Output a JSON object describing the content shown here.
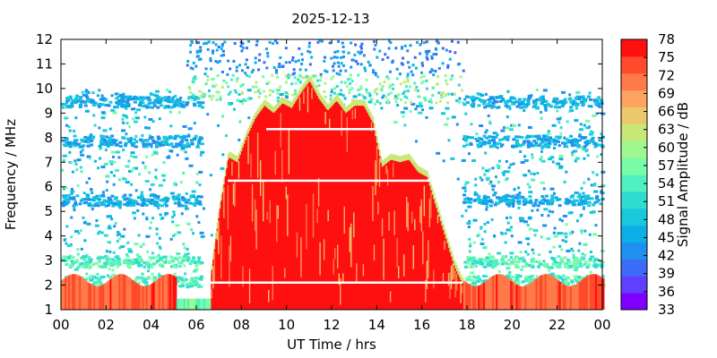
{
  "chart_data": {
    "type": "heatmap",
    "title": "2025-12-13",
    "xlabel": "UT Time / hrs",
    "ylabel": "Frequency / MHz",
    "colorbar_label": "Signal Amplitude / dB",
    "xlim": [
      0,
      24
    ],
    "ylim": [
      1,
      12
    ],
    "x_ticks": [
      "00",
      "02",
      "04",
      "06",
      "08",
      "10",
      "12",
      "14",
      "16",
      "18",
      "20",
      "22",
      "00"
    ],
    "y_ticks": [
      1,
      2,
      3,
      4,
      5,
      6,
      7,
      8,
      9,
      10,
      11,
      12
    ],
    "colorbar_range": [
      33,
      78
    ],
    "colorbar_ticks": [
      33,
      36,
      39,
      42,
      45,
      48,
      51,
      54,
      57,
      60,
      63,
      66,
      69,
      72,
      75,
      78
    ],
    "colorbar_colors": [
      "#8000ff",
      "#6040ff",
      "#3c6cf5",
      "#2090ee",
      "#0cb0e6",
      "#18c8dc",
      "#30dcd0",
      "#50f0c0",
      "#78fca8",
      "#a0f890",
      "#c8e878",
      "#ecc86c",
      "#fca460",
      "#ff7a48",
      "#ff4a2c",
      "#ff1010"
    ],
    "muf_profile_hours": [
      6.6,
      7.0,
      7.4,
      7.8,
      8.2,
      8.6,
      9.0,
      9.4,
      9.8,
      10.2,
      10.6,
      11.0,
      11.4,
      11.8,
      12.2,
      12.6,
      13.0,
      13.4,
      13.8,
      14.2,
      14.6,
      15.0,
      15.4,
      15.8,
      16.2,
      16.6,
      17.0,
      17.4,
      17.8
    ],
    "muf_profile_mhz": [
      2.2,
      5.0,
      7.2,
      7.0,
      8.0,
      8.8,
      9.3,
      9.0,
      9.4,
      9.2,
      9.8,
      10.3,
      9.6,
      9.1,
      9.5,
      9.0,
      9.3,
      9.3,
      8.6,
      6.8,
      7.1,
      7.0,
      7.1,
      6.6,
      6.4,
      5.2,
      4.0,
      2.8,
      2.0
    ],
    "white_lines": [
      {
        "mhz": 8.35,
        "from": 9.1,
        "to": 14.0
      },
      {
        "mhz": 6.25,
        "from": 7.4,
        "to": 17.0
      },
      {
        "mhz": 2.1,
        "from": 6.6,
        "to": 17.8
      }
    ],
    "noise_bands_mhz": [
      9.5,
      7.9,
      5.5,
      3.0,
      2.2
    ],
    "low_band_day_level_db": 75,
    "night_band_level_db": 73
  }
}
